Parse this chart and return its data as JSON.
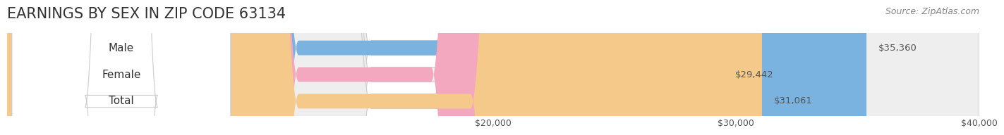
{
  "title": "EARNINGS BY SEX IN ZIP CODE 63134",
  "source": "Source: ZipAtlas.com",
  "categories": [
    "Male",
    "Female",
    "Total"
  ],
  "values": [
    35360,
    29442,
    31061
  ],
  "bar_colors": [
    "#7ab3e0",
    "#f4a8c0",
    "#f5c98a"
  ],
  "bar_bg_color": "#e8e8e8",
  "label_colors": [
    "#7ab3e0",
    "#f4a8c0",
    "#f5c98a"
  ],
  "xmin": 0,
  "xmax": 40000,
  "xticks": [
    20000,
    30000,
    40000
  ],
  "xtick_labels": [
    "$20,000",
    "$30,000",
    "$40,000"
  ],
  "title_fontsize": 15,
  "label_fontsize": 11,
  "value_fontsize": 9.5,
  "source_fontsize": 9,
  "bar_height": 0.55,
  "background_color": "#ffffff"
}
